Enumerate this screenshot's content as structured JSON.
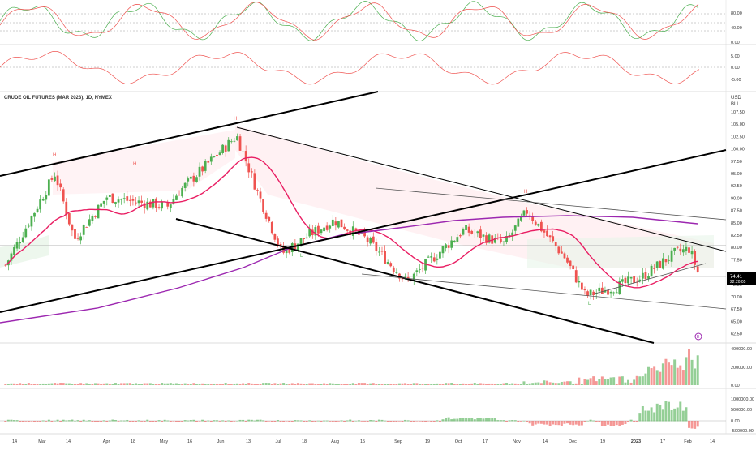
{
  "chart_title": "CRUDE OIL FUTURES (MAR 2023), 1D, NYMEX",
  "currency": "USD",
  "unit": "BLL",
  "last_price": "74.41",
  "countdown": "22:20:05",
  "earnings_marker": "E",
  "colors": {
    "up": "#4caf50",
    "down": "#ef5350",
    "ma": "#e91e63",
    "ma_long": "#9c27b0",
    "black": "#000000",
    "grid": "#e0e0e0",
    "text": "#333333"
  },
  "x_axis": [
    "14",
    "Mar",
    "14",
    "Apr",
    "18",
    "May",
    "16",
    "Jun",
    "13",
    "Jul",
    "18",
    "Aug",
    "15",
    "Sep",
    "19",
    "Oct",
    "17",
    "Nov",
    "14",
    "Dec",
    "19",
    "2023",
    "17",
    "Feb",
    "14"
  ],
  "panels": {
    "stochastic": {
      "ticks": [
        "80.00",
        "40.00",
        "0.00"
      ]
    },
    "oscillator": {
      "ticks": [
        "5.00",
        "0.00",
        "-5.00"
      ]
    },
    "price": {
      "ticks": [
        "107.50",
        "105.00",
        "102.50",
        "100.00",
        "97.50",
        "95.00",
        "92.50",
        "90.00",
        "87.50",
        "85.00",
        "82.50",
        "80.00",
        "77.50",
        "72.50",
        "70.00",
        "67.50",
        "65.00",
        "62.50"
      ]
    },
    "volume": {
      "ticks": [
        "400000.00",
        "200000.00",
        "0.00"
      ]
    },
    "open_interest": {
      "ticks": [
        "1000000.00",
        "500000.00",
        "0.00",
        "-500000.00"
      ]
    }
  },
  "pivot_labels": [
    "H",
    "H",
    "H",
    "H",
    "L",
    "L"
  ],
  "chart_data": {
    "type": "candlestick",
    "ylim": [
      61,
      109
    ],
    "series_close_approx": [
      {
        "x": "Feb 14",
        "y": 77.5
      },
      {
        "x": "Mar 7",
        "y": 97
      },
      {
        "x": "Mar 14",
        "y": 83
      },
      {
        "x": "Apr 1",
        "y": 92
      },
      {
        "x": "Apr 18",
        "y": 91
      },
      {
        "x": "May 10",
        "y": 90
      },
      {
        "x": "May 16",
        "y": 93
      },
      {
        "x": "Jun 13",
        "y": 105
      },
      {
        "x": "Jul 1",
        "y": 92
      },
      {
        "x": "Jul 14",
        "y": 80
      },
      {
        "x": "Aug 1",
        "y": 84
      },
      {
        "x": "Aug 15",
        "y": 87
      },
      {
        "x": "Sep 1",
        "y": 83
      },
      {
        "x": "Sep 26",
        "y": 74
      },
      {
        "x": "Oct 10",
        "y": 85
      },
      {
        "x": "Nov 1",
        "y": 82
      },
      {
        "x": "Nov 7",
        "y": 89
      },
      {
        "x": "Nov 30",
        "y": 79
      },
      {
        "x": "Dec 9",
        "y": 71
      },
      {
        "x": "Dec 19",
        "y": 73
      },
      {
        "x": "Jan 3",
        "y": 75
      },
      {
        "x": "Jan 17",
        "y": 80
      },
      {
        "x": "Jan 24",
        "y": 81
      },
      {
        "x": "Feb 3",
        "y": 74.4
      }
    ]
  }
}
